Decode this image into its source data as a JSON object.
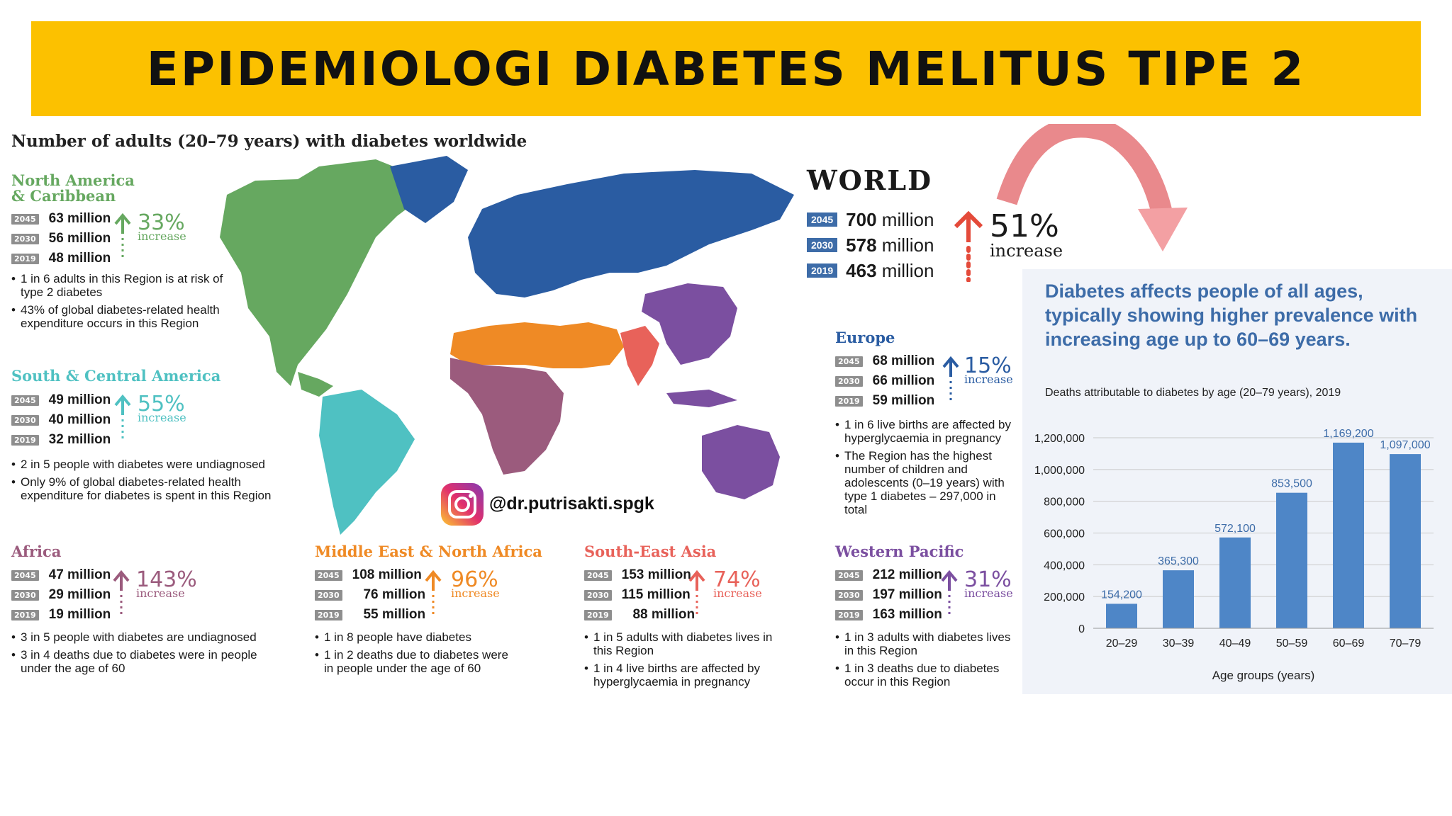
{
  "banner": {
    "title": "EPIDEMIOLOGI DIABETES MELITUS TIPE 2"
  },
  "subtitle": "Number of adults (20–79 years) with diabetes worldwide",
  "colors": {
    "north_america": "#66a860",
    "south_america": "#4fc1c2",
    "africa": "#9b5b7d",
    "mena": "#ef8a25",
    "sea": "#e8625a",
    "wp": "#7b4fa0",
    "europe": "#2a5ca2",
    "world": "#e44a3a",
    "bar": "#4e86c7"
  },
  "world": {
    "title": "WORLD",
    "rows": [
      {
        "year": "2045",
        "value": "700",
        "unit": "million"
      },
      {
        "year": "2030",
        "value": "578",
        "unit": "million"
      },
      {
        "year": "2019",
        "value": "463",
        "unit": "million"
      }
    ],
    "pct": "51%",
    "pct_label": "increase"
  },
  "regions": {
    "north_america": {
      "title": "North America & Caribbean",
      "rows": [
        {
          "year": "2045",
          "value": "63",
          "unit": "million"
        },
        {
          "year": "2030",
          "value": "56",
          "unit": "million"
        },
        {
          "year": "2019",
          "value": "48",
          "unit": "million"
        }
      ],
      "pct": "33%",
      "pct_label": "increase",
      "bullets": [
        "1 in 6 adults in this Region is at risk of type 2 diabetes",
        "43% of global diabetes-related health expenditure occurs in this Region"
      ]
    },
    "south_america": {
      "title": "South & Central America",
      "rows": [
        {
          "year": "2045",
          "value": "49",
          "unit": "million"
        },
        {
          "year": "2030",
          "value": "40",
          "unit": "million"
        },
        {
          "year": "2019",
          "value": "32",
          "unit": "million"
        }
      ],
      "pct": "55%",
      "pct_label": "increase",
      "bullets": [
        "2 in 5 people with diabetes were undiagnosed",
        "Only 9% of global diabetes-related health expenditure for diabetes is spent in this Region"
      ]
    },
    "europe": {
      "title": "Europe",
      "rows": [
        {
          "year": "2045",
          "value": "68",
          "unit": "million"
        },
        {
          "year": "2030",
          "value": "66",
          "unit": "million"
        },
        {
          "year": "2019",
          "value": "59",
          "unit": "million"
        }
      ],
      "pct": "15%",
      "pct_label": "increase",
      "bullets": [
        "1 in 6 live births are affected by hyperglycaemia in pregnancy",
        "The Region has the highest number of children and adolescents (0–19 years) with type 1 diabetes – 297,000 in total"
      ]
    },
    "africa": {
      "title": "Africa",
      "rows": [
        {
          "year": "2045",
          "value": "47",
          "unit": "million"
        },
        {
          "year": "2030",
          "value": "29",
          "unit": "million"
        },
        {
          "year": "2019",
          "value": "19",
          "unit": "million"
        }
      ],
      "pct": "143%",
      "pct_label": "increase",
      "bullets": [
        "3 in 5 people with diabetes are undiagnosed",
        "3 in 4 deaths due to diabetes were in people under the age of 60"
      ]
    },
    "mena": {
      "title": "Middle East & North Africa",
      "rows": [
        {
          "year": "2045",
          "value": "108",
          "unit": "million"
        },
        {
          "year": "2030",
          "value": "76",
          "unit": "million"
        },
        {
          "year": "2019",
          "value": "55",
          "unit": "million"
        }
      ],
      "pct": "96%",
      "pct_label": "increase",
      "bullets": [
        "1 in 8 people have diabetes",
        "1 in 2 deaths due to diabetes were in people under the age of 60"
      ]
    },
    "sea": {
      "title": "South-East Asia",
      "rows": [
        {
          "year": "2045",
          "value": "153",
          "unit": "million"
        },
        {
          "year": "2030",
          "value": "115",
          "unit": "million"
        },
        {
          "year": "2019",
          "value": "88",
          "unit": "million"
        }
      ],
      "pct": "74%",
      "pct_label": "increase",
      "bullets": [
        "1 in 5 adults with diabetes lives in this Region",
        "1 in 4 live births are affected by hyperglycaemia in pregnancy"
      ]
    },
    "wp": {
      "title": "Western Pacific",
      "rows": [
        {
          "year": "2045",
          "value": "212",
          "unit": "million"
        },
        {
          "year": "2030",
          "value": "197",
          "unit": "million"
        },
        {
          "year": "2019",
          "value": "163",
          "unit": "million"
        }
      ],
      "pct": "31%",
      "pct_label": "increase",
      "bullets": [
        "1 in 3 adults with diabetes lives in this Region",
        "1 in 3 deaths due to diabetes occur in this Region"
      ]
    }
  },
  "watermark": "@dr.putrisakti.spgk",
  "chart_heading": "Diabetes affects people of all ages, typically showing higher prevalence with increasing age up to 60–69 years.",
  "chart_data": {
    "type": "bar",
    "title": "Deaths attributable to diabetes by age (20–79 years), 2019",
    "xlabel": "Age groups (years)",
    "ylabel": "",
    "categories": [
      "20–29",
      "30–39",
      "40–49",
      "50–59",
      "60–69",
      "70–79"
    ],
    "values": [
      154200,
      365300,
      572100,
      853500,
      1169200,
      1097000
    ],
    "data_labels": [
      "154,200",
      "365,300",
      "572,100",
      "853,500",
      "1,169,200",
      "1,097,000"
    ],
    "ylim": [
      0,
      1200000
    ],
    "yticks": [
      0,
      200000,
      400000,
      600000,
      800000,
      1000000,
      1200000
    ],
    "ytick_labels": [
      "0",
      "200,000",
      "400,000",
      "600,000",
      "800,000",
      "1,000,000",
      "1,200,000"
    ],
    "grid": true,
    "color": "#4e86c7"
  }
}
